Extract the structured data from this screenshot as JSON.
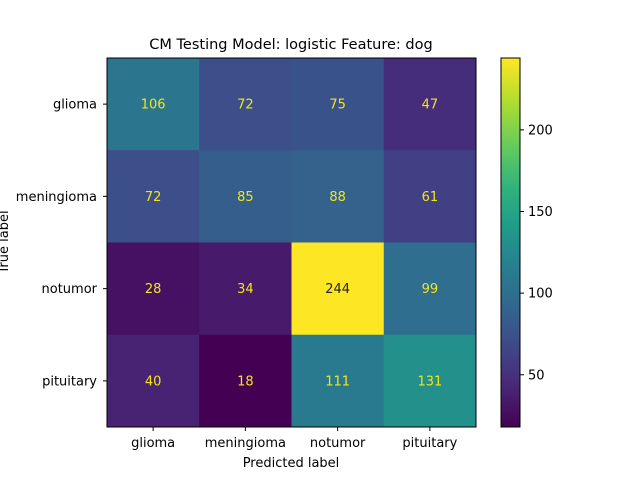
{
  "chart_data": {
    "type": "heatmap",
    "title": "CM Testing Model: logistic Feature: dog",
    "xlabel": "Predicted label",
    "ylabel": "True label",
    "x_categories": [
      "glioma",
      "meningioma",
      "notumor",
      "pituitary"
    ],
    "y_categories": [
      "glioma",
      "meningioma",
      "notumor",
      "pituitary"
    ],
    "values": [
      [
        106,
        72,
        75,
        47
      ],
      [
        72,
        85,
        88,
        61
      ],
      [
        28,
        34,
        244,
        99
      ],
      [
        40,
        18,
        111,
        131
      ]
    ],
    "colorbar": {
      "colormap": "viridis",
      "vmin": 18,
      "vmax": 244,
      "ticks": [
        50,
        100,
        150,
        200
      ]
    },
    "grid": false
  }
}
